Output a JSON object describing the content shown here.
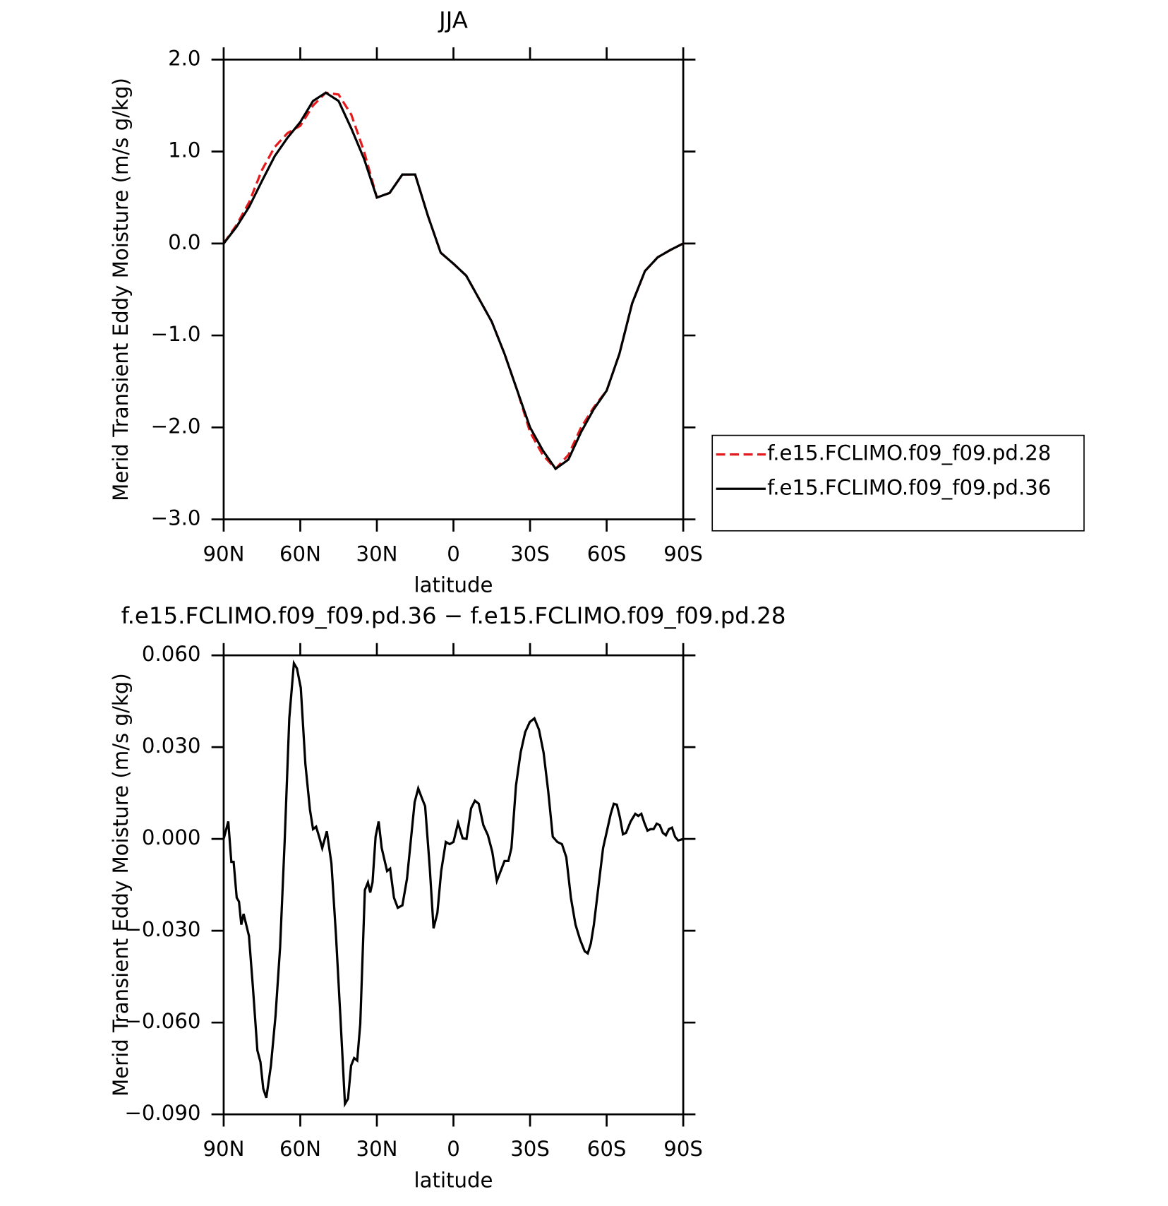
{
  "chart_data": [
    {
      "type": "line",
      "title": "JJA",
      "xlabel": "latitude",
      "ylabel": "Merid Transient Eddy Moisture (m/s g/kg)",
      "x": [
        90,
        85,
        80,
        75,
        70,
        65,
        60,
        55,
        50,
        45,
        40,
        35,
        30,
        25,
        20,
        15,
        10,
        5,
        0,
        -5,
        -10,
        -15,
        -20,
        -25,
        -30,
        -35,
        -40,
        -45,
        -50,
        -55,
        -60,
        -65,
        -70,
        -75,
        -80,
        -85,
        -90
      ],
      "series": [
        {
          "name": "f.e15.FCLIMO.f09_f09.pd.28",
          "color": "#e41a1c",
          "line_style": "dashed",
          "values": [
            0,
            0.2,
            0.45,
            0.8,
            1.05,
            1.2,
            1.28,
            1.5,
            1.64,
            1.62,
            1.4,
            1.0,
            0.5,
            0.55,
            0.75,
            0.75,
            0.3,
            -0.1,
            -0.22,
            -0.35,
            -0.6,
            -0.85,
            -1.2,
            -1.6,
            -2.05,
            -2.3,
            -2.45,
            -2.3,
            -2.0,
            -1.78,
            -1.6,
            -1.2,
            -0.65,
            -0.3,
            -0.15,
            -0.07,
            0
          ]
        },
        {
          "name": "f.e15.FCLIMO.f09_f09.pd.36",
          "color": "#000000",
          "line_style": "solid",
          "values": [
            0,
            0.18,
            0.4,
            0.68,
            0.95,
            1.15,
            1.32,
            1.55,
            1.64,
            1.55,
            1.25,
            0.92,
            0.5,
            0.55,
            0.75,
            0.75,
            0.3,
            -0.1,
            -0.22,
            -0.35,
            -0.6,
            -0.85,
            -1.2,
            -1.6,
            -2.0,
            -2.25,
            -2.45,
            -2.35,
            -2.05,
            -1.8,
            -1.6,
            -1.2,
            -0.65,
            -0.3,
            -0.15,
            -0.07,
            0
          ]
        }
      ],
      "xlim": [
        90,
        -90
      ],
      "xticks": [
        {
          "value": 90,
          "label": "90N"
        },
        {
          "value": 60,
          "label": "60N"
        },
        {
          "value": 30,
          "label": "30N"
        },
        0,
        {
          "value": -30,
          "label": "30S"
        },
        {
          "value": -60,
          "label": "60S"
        },
        {
          "value": -90,
          "label": "90S"
        }
      ],
      "ylim": [
        -3,
        2
      ],
      "yticks": [
        {
          "value": 2,
          "label": "2.0"
        },
        {
          "value": 1,
          "label": "1.0"
        },
        {
          "value": 0,
          "label": "0.0"
        },
        {
          "value": -1,
          "label": "−1.0"
        },
        {
          "value": -2,
          "label": "−2.0"
        },
        {
          "value": -3,
          "label": "−3.0"
        }
      ],
      "legend": "right"
    },
    {
      "type": "line",
      "title": "f.e15.FCLIMO.f09_f09.pd.36 − f.e15.FCLIMO.f09_f09.pd.28",
      "xlabel": "latitude",
      "ylabel": "Merid Transient Eddy Moisture (m/s g/kg)",
      "color": "#000000",
      "x": [
        90,
        88.2,
        87,
        86.1,
        84.9,
        84,
        83.1,
        82.2,
        80.1,
        78.6,
        76.8,
        75.6,
        74.5,
        73.3,
        71.5,
        69.7,
        67.9,
        66.1,
        64.3,
        62.5,
        61.3,
        59.8,
        58,
        56.2,
        55,
        53.8,
        52.6,
        51.4,
        49.6,
        47.8,
        46,
        44.3,
        42.5,
        41.3,
        40.1,
        38.9,
        37.7,
        36.5,
        34.7,
        33.5,
        32.6,
        31.7,
        30.5,
        29.3,
        28.1,
        26,
        24.8,
        23.3,
        21.8,
        20,
        18.2,
        16.4,
        15.2,
        13.8,
        12.3,
        11.1,
        9.3,
        7.8,
        6.3,
        4.8,
        3,
        1.5,
        0,
        -1.8,
        -3.6,
        -5.1,
        -6.9,
        -8.4,
        -9.9,
        -11.7,
        -13.5,
        -15.2,
        -17,
        -18.5,
        -20,
        -21.5,
        -22.7,
        -24.5,
        -26.3,
        -28.1,
        -29.9,
        -31.7,
        -33.5,
        -35.3,
        -37.1,
        -38.9,
        -40.7,
        -42.5,
        -44.2,
        -46,
        -47.8,
        -49.6,
        -51.4,
        -52.6,
        -53.8,
        -55,
        -56.8,
        -58.6,
        -60.4,
        -61.6,
        -62.8,
        -64,
        -65.2,
        -66.4,
        -67.6,
        -69.4,
        -71.2,
        -72.4,
        -73.6,
        -74.8,
        -76,
        -77.2,
        -78.4,
        -79.6,
        -80.8,
        -82,
        -83.2,
        -84.4,
        -85.6,
        -86.8,
        -88,
        -90
      ],
      "values": [
        0,
        0.0057,
        -0.0075,
        -0.0075,
        -0.0192,
        -0.0205,
        -0.028,
        -0.0245,
        -0.0317,
        -0.0479,
        -0.0691,
        -0.0729,
        -0.0816,
        -0.0846,
        -0.0741,
        -0.0579,
        -0.0354,
        -0.0005,
        0.0394,
        0.0574,
        0.0557,
        0.0494,
        0.0245,
        0.0095,
        0.0032,
        0.004,
        0.0007,
        -0.003,
        0.0025,
        -0.008,
        -0.0317,
        -0.0579,
        -0.0866,
        -0.0849,
        -0.0741,
        -0.0716,
        -0.0724,
        -0.0604,
        -0.0167,
        -0.0142,
        -0.0175,
        -0.0142,
        0.0007,
        0.0057,
        -0.003,
        -0.0105,
        -0.0097,
        -0.0192,
        -0.0225,
        -0.0217,
        -0.013,
        0.002,
        0.012,
        0.0165,
        0.0132,
        0.0107,
        -0.0092,
        -0.0292,
        -0.0242,
        -0.0105,
        -0.001,
        -0.0017,
        -0.001,
        0.0052,
        0.0002,
        0,
        0.01,
        0.0125,
        0.0115,
        0.0045,
        0.0012,
        -0.0042,
        -0.0137,
        -0.0105,
        -0.0072,
        -0.0072,
        -0.003,
        0.0175,
        0.0282,
        0.0349,
        0.0382,
        0.0394,
        0.0357,
        0.0282,
        0.0157,
        0.0007,
        -0.001,
        -0.0017,
        -0.006,
        -0.0192,
        -0.028,
        -0.0329,
        -0.0367,
        -0.0374,
        -0.0342,
        -0.028,
        -0.0155,
        -0.003,
        0.0037,
        0.0082,
        0.0115,
        0.0112,
        0.007,
        0.0015,
        0.002,
        0.0057,
        0.0082,
        0.0075,
        0.0082,
        0.0052,
        0.0027,
        0.0032,
        0.0032,
        0.005,
        0.0045,
        0.002,
        0.0012,
        0.0032,
        0.0037,
        0.0007,
        -0.0005,
        0
      ],
      "xlim": [
        90,
        -90
      ],
      "xticks": [
        {
          "value": 90,
          "label": "90N"
        },
        {
          "value": 60,
          "label": "60N"
        },
        {
          "value": 30,
          "label": "30N"
        },
        0,
        {
          "value": -30,
          "label": "30S"
        },
        {
          "value": -60,
          "label": "60S"
        },
        {
          "value": -90,
          "label": "90S"
        }
      ],
      "ylim": [
        -0.09,
        0.06
      ],
      "yticks": [
        {
          "value": 0.06,
          "label": "0.060"
        },
        {
          "value": 0.03,
          "label": "0.030"
        },
        {
          "value": 0,
          "label": "0.000"
        },
        {
          "value": -0.03,
          "label": "−0.030"
        },
        {
          "value": -0.06,
          "label": "−0.060"
        },
        {
          "value": -0.09,
          "label": "−0.090"
        }
      ]
    }
  ]
}
